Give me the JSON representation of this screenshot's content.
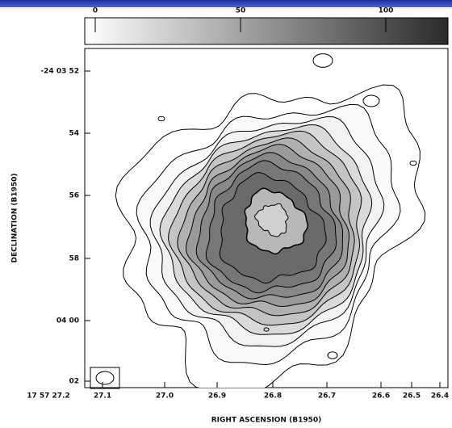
{
  "colorbar": {
    "ticks": [
      0,
      50,
      100
    ]
  },
  "x_axis": {
    "label": "RIGHT ASCENSION (B1950)",
    "ticks": [
      "17 57 27.2",
      "27.1",
      "27.0",
      "26.9",
      "26.8",
      "26.7",
      "26.6",
      "26.5",
      "26.4"
    ]
  },
  "y_axis": {
    "label": "DECLINATION (B1950)",
    "ticks": [
      "-24 03 52",
      "54",
      "56",
      "58",
      "04 00",
      "02"
    ]
  }
}
